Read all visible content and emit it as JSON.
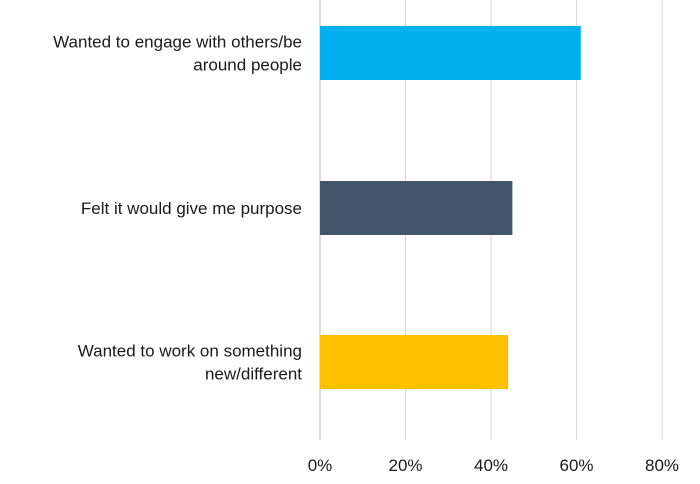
{
  "chart_data": {
    "type": "bar",
    "orientation": "horizontal",
    "categories": [
      [
        "Wanted to engage with others/be",
        "around people"
      ],
      [
        "Felt it would give me purpose"
      ],
      [
        "Wanted to work on something",
        "new/different"
      ]
    ],
    "values": [
      61,
      45,
      44
    ],
    "bar_colors": [
      "#00B0F0",
      "#44546A",
      "#FFC000"
    ],
    "x_ticks": [
      "0%",
      "20%",
      "40%",
      "60%",
      "80%"
    ],
    "xlim": [
      0,
      80
    ],
    "grid": true,
    "title": "",
    "xlabel": "",
    "ylabel": ""
  }
}
